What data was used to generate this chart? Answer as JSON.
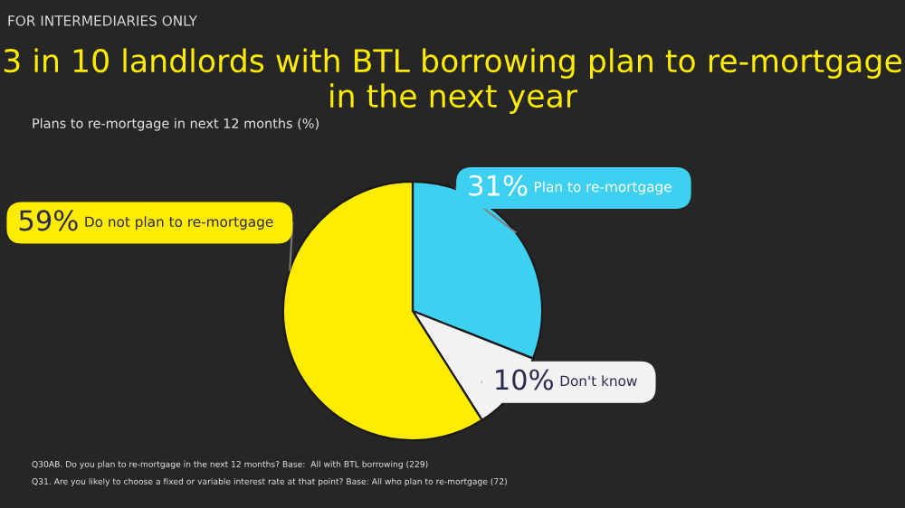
{
  "chart_data": {
    "type": "pie",
    "title": "3 in 10 landlords with BTL borrowing plan to re-mortgage in the next year",
    "subtitle": "Plans to re-mortgage in next 12 months (%)",
    "categories": [
      "Plan to re-mortgage",
      "Don't know",
      "Do not plan to re-mortgage"
    ],
    "values": [
      31,
      10,
      59
    ],
    "value_labels": [
      "31%",
      "10%",
      "59%"
    ],
    "colors": [
      "#3dd0f0",
      "#f2f2f2",
      "#ffec00"
    ],
    "annotations": [
      "FOR INTERMEDIARIES ONLY",
      "Q30AB. Do you plan to re-mortgage in the next 12 months? Base:  All with BTL borrowing (229)",
      "Q31. Are you likely to choose a fixed or variable interest rate at that point? Base: All who plan to re-mortgage (72)"
    ]
  }
}
